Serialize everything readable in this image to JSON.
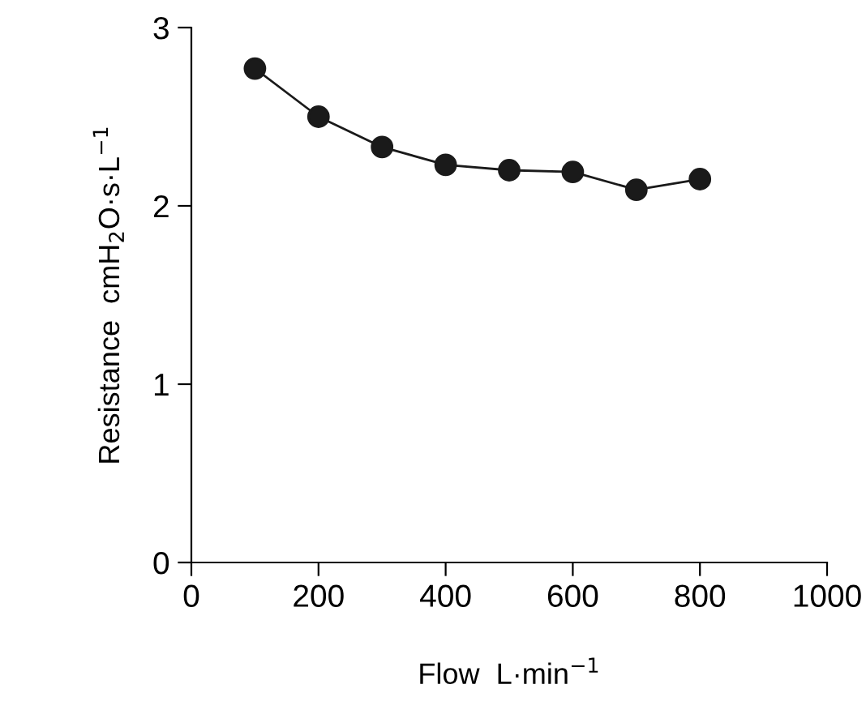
{
  "chart_data": {
    "type": "line",
    "xlabel": "Flow  L·min$^{−1}$",
    "ylabel": "Resistance  cmH$_{2}$O·s·L$^{−1}$",
    "x": [
      100,
      200,
      300,
      400,
      500,
      600,
      700,
      800
    ],
    "series": [
      {
        "color": "#1a1a1a",
        "values": [
          2.77,
          2.5,
          2.33,
          2.23,
          2.2,
          2.19,
          2.09,
          2.15
        ]
      }
    ],
    "xlim": [
      0,
      1000
    ],
    "ylim": [
      0,
      3
    ],
    "xticks": [
      0,
      200,
      400,
      600,
      800,
      1000
    ],
    "yticks": [
      0,
      1,
      2,
      3
    ],
    "grid": false,
    "legend": false,
    "marker": "circle",
    "line_style": "solid"
  }
}
